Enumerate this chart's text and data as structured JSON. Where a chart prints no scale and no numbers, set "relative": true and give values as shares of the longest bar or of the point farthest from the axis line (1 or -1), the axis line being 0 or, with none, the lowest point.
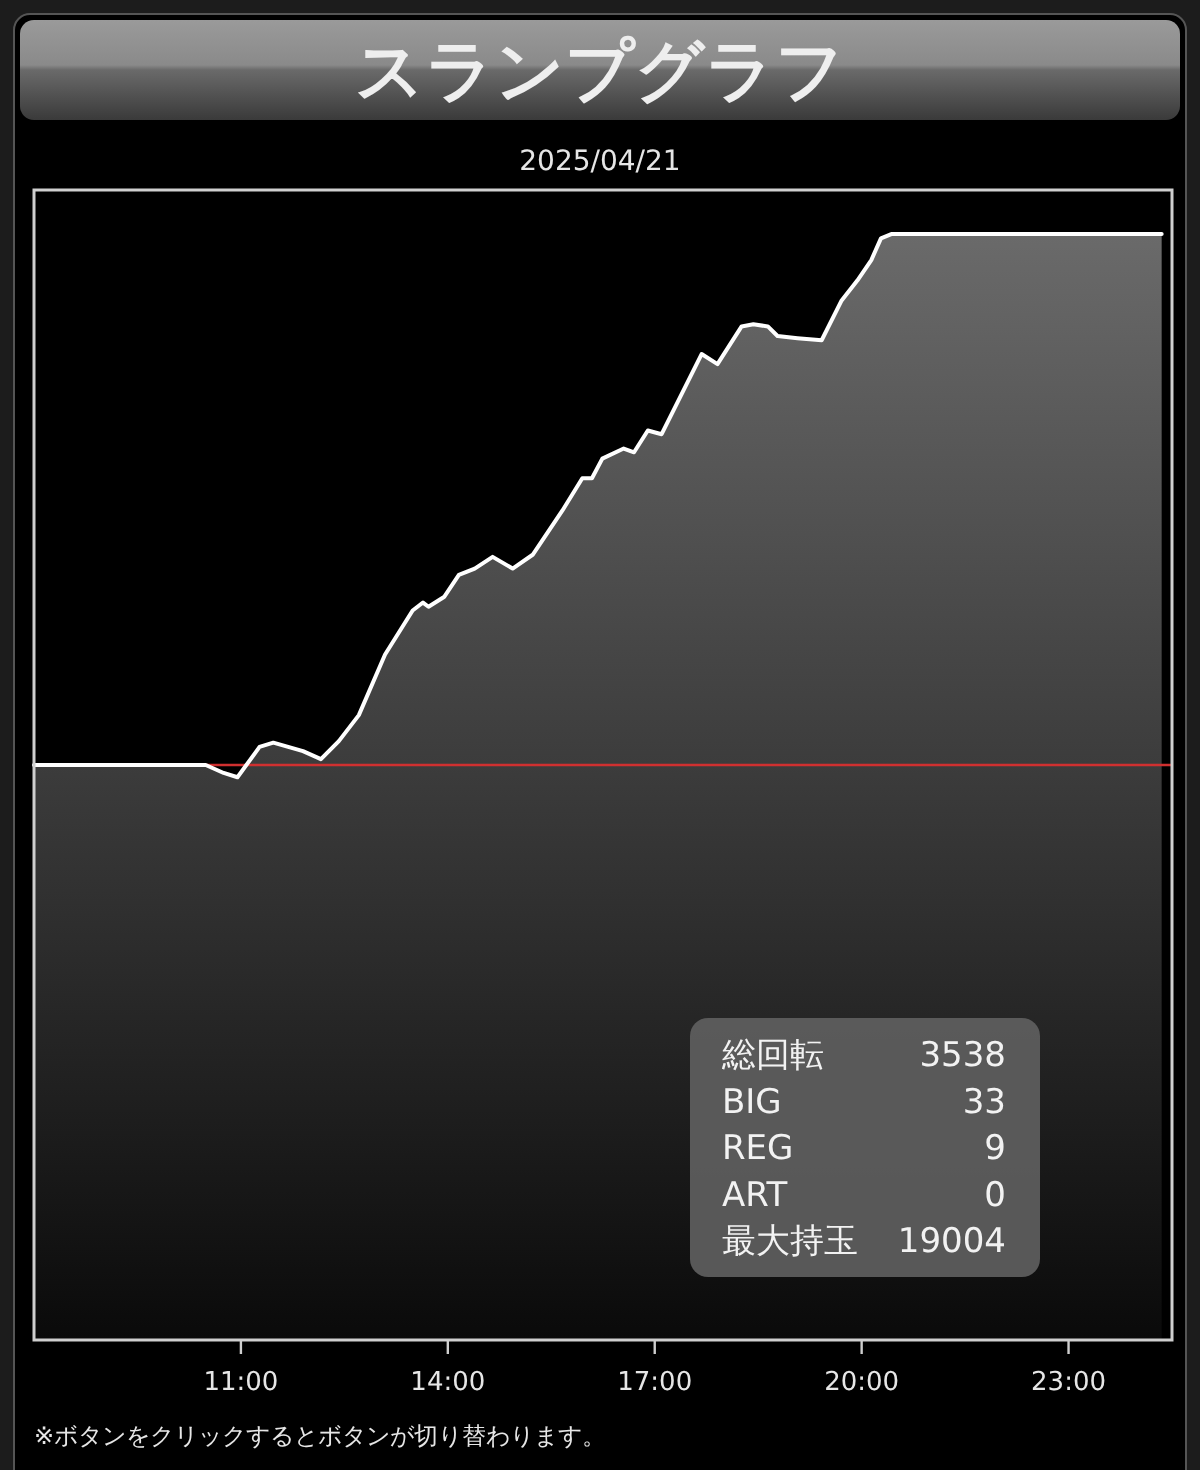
{
  "chart_data": {
    "type": "area",
    "title": "スランプグラフ",
    "subtitle": "2025/04/21",
    "relative": true,
    "tick_labels": "x",
    "grid": false,
    "line_style": "solid",
    "xlim": [
      8,
      24.5
    ],
    "xticks": [
      {
        "value": 11,
        "label": "11:00"
      },
      {
        "value": 14,
        "label": "14:00"
      },
      {
        "value": 17,
        "label": "17:00"
      },
      {
        "value": 20,
        "label": "20:00"
      },
      {
        "value": 23,
        "label": "23:00"
      }
    ],
    "ref_lines": [
      {
        "axis": "y",
        "value": 0,
        "color": "#d03030"
      }
    ],
    "series": [
      {
        "color": "#ffffff",
        "x": [
          8.0,
          10.49,
          10.75,
          10.95,
          11.27,
          11.47,
          11.9,
          12.16,
          12.42,
          12.71,
          13.09,
          13.49,
          13.64,
          13.72,
          13.95,
          14.16,
          14.39,
          14.65,
          14.94,
          15.23,
          15.66,
          15.95,
          16.09,
          16.24,
          16.55,
          16.7,
          16.9,
          17.1,
          17.68,
          17.91,
          18.26,
          18.43,
          18.64,
          18.78,
          19.07,
          19.42,
          19.71,
          19.94,
          20.14,
          20.28,
          20.43,
          24.35
        ],
        "values": [
          0,
          0,
          -0.015,
          -0.023,
          0.034,
          0.042,
          0.026,
          0.011,
          0.045,
          0.094,
          0.208,
          0.291,
          0.306,
          0.298,
          0.317,
          0.358,
          0.37,
          0.392,
          0.37,
          0.396,
          0.479,
          0.54,
          0.54,
          0.577,
          0.596,
          0.589,
          0.63,
          0.623,
          0.774,
          0.755,
          0.826,
          0.83,
          0.826,
          0.808,
          0.804,
          0.8,
          0.875,
          0.913,
          0.951,
          0.992,
          1,
          1
        ]
      }
    ],
    "annotations": [
      "総回転 3538",
      "BIG 33",
      "REG 9",
      "ART 0",
      "最大持玉 19004",
      "※ボタンをクリックするとボタンが切り替わります。"
    ]
  }
}
